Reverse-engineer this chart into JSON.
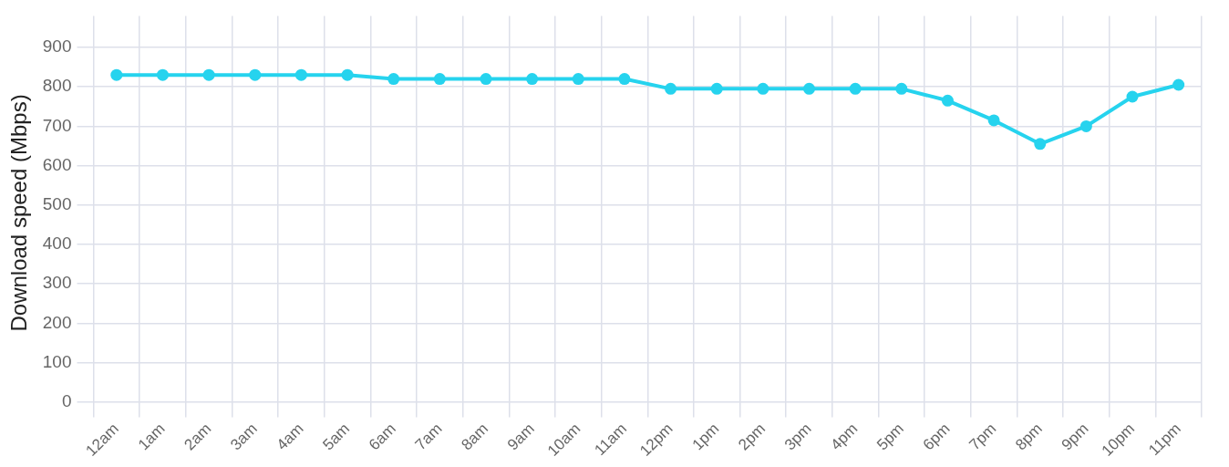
{
  "chart_data": {
    "type": "line",
    "ylabel": "Download speed (Mbps)",
    "categories": [
      "12am",
      "1am",
      "2am",
      "3am",
      "4am",
      "5am",
      "6am",
      "7am",
      "8am",
      "9am",
      "10am",
      "11am",
      "12pm",
      "1pm",
      "2pm",
      "3pm",
      "4pm",
      "5pm",
      "6pm",
      "7pm",
      "8pm",
      "9pm",
      "10pm",
      "11pm"
    ],
    "series": [
      {
        "color": "#26d3ee",
        "values": [
          830,
          830,
          830,
          830,
          830,
          830,
          820,
          820,
          820,
          820,
          820,
          820,
          795,
          795,
          795,
          795,
          795,
          795,
          765,
          715,
          655,
          700,
          775,
          805
        ]
      }
    ],
    "ylim": [
      -20,
      980
    ],
    "yticks": [
      0,
      100,
      200,
      300,
      400,
      500,
      600,
      700,
      800,
      900
    ],
    "grid": true,
    "legend": false,
    "marker": "circle",
    "line_style": "solid"
  }
}
